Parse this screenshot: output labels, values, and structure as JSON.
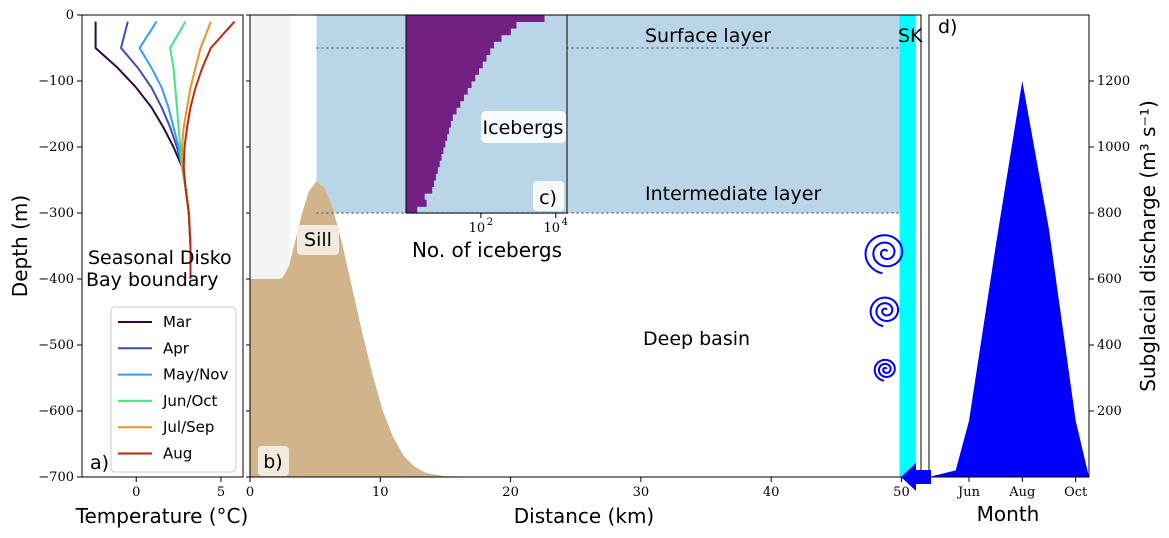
{
  "colors": {
    "shelf_grey": "#f4f4f4",
    "layer_blue": "#bbd5e8",
    "bathymetry": "#d2b48c",
    "icebergs": "#722182",
    "glacier": "#00ffff",
    "discharge": "#0000ff",
    "spiral": "#0000ff",
    "label_box": "#f2ebdd"
  },
  "chart_data": [
    {
      "id": "a",
      "type": "line",
      "panel_label": "a)",
      "xlabel": "Temperature (°C)",
      "ylabel": "Depth (m)",
      "xlim": [
        -3.2,
        6.3
      ],
      "ylim": [
        -700,
        0
      ],
      "xticks": [
        0,
        5
      ],
      "yticks": [
        0,
        -100,
        -200,
        -300,
        -400,
        -500,
        -600,
        -700
      ],
      "annotation": "Seasonal Disko Bay boundary",
      "annotation_lines": [
        "Seasonal Disko",
        "Bay boundary"
      ],
      "legend_position": "lower-right",
      "series": [
        {
          "name": "Mar",
          "color": "#2c0a3d",
          "depth": [
            -10,
            -50,
            -80,
            -110,
            -140,
            -170,
            -200,
            -230,
            -260,
            -300,
            -350,
            -400
          ],
          "temp": [
            -2.4,
            -2.4,
            -1.1,
            0.0,
            0.9,
            1.6,
            2.2,
            2.7,
            2.9,
            3.1,
            3.2,
            3.2
          ]
        },
        {
          "name": "Apr",
          "color": "#3c4fb5",
          "depth": [
            -10,
            -50,
            -80,
            -110,
            -140,
            -170,
            -200,
            -230,
            -260,
            -300,
            -350,
            -400
          ],
          "temp": [
            -0.5,
            -0.9,
            0.1,
            0.9,
            1.5,
            2.0,
            2.4,
            2.7,
            2.9,
            3.1,
            3.2,
            3.2
          ]
        },
        {
          "name": "May/Nov",
          "color": "#3a9af5",
          "depth": [
            -10,
            -50,
            -80,
            -110,
            -140,
            -170,
            -200,
            -230,
            -260,
            -300,
            -350,
            -400
          ],
          "temp": [
            1.2,
            0.2,
            0.9,
            1.5,
            1.9,
            2.2,
            2.5,
            2.7,
            2.9,
            3.1,
            3.2,
            3.2
          ]
        },
        {
          "name": "Jun/Oct",
          "color": "#40e880",
          "depth": [
            -10,
            -50,
            -80,
            -110,
            -140,
            -170,
            -200,
            -230,
            -260,
            -300,
            -350,
            -400
          ],
          "temp": [
            2.9,
            2.0,
            2.2,
            2.3,
            2.4,
            2.5,
            2.6,
            2.7,
            2.9,
            3.1,
            3.2,
            3.2
          ]
        },
        {
          "name": "Jul/Sep",
          "color": "#f0902a",
          "depth": [
            -10,
            -50,
            -80,
            -110,
            -140,
            -170,
            -200,
            -230,
            -260,
            -300,
            -350,
            -400
          ],
          "temp": [
            4.4,
            3.8,
            3.5,
            3.2,
            3.0,
            2.8,
            2.7,
            2.75,
            2.9,
            3.1,
            3.2,
            3.2
          ]
        },
        {
          "name": "Aug",
          "color": "#bb2a10",
          "depth": [
            -10,
            -50,
            -80,
            -110,
            -140,
            -170,
            -200,
            -230,
            -260,
            -300,
            -350,
            -400
          ],
          "temp": [
            5.8,
            4.4,
            3.9,
            3.5,
            3.2,
            3.0,
            2.85,
            2.8,
            2.9,
            3.1,
            3.2,
            3.2
          ]
        }
      ]
    },
    {
      "id": "b",
      "type": "area",
      "panel_label": "b)",
      "xlabel": "Distance (km)",
      "xlim": [
        0,
        51.5
      ],
      "ylim": [
        -700,
        0
      ],
      "xticks": [
        0,
        10,
        20,
        30,
        40,
        50
      ],
      "layers": {
        "surface": {
          "label": "Surface layer",
          "bottom": -50
        },
        "intermediate": {
          "label": "Intermediate layer",
          "bottom": -300
        },
        "deep": {
          "label": "Deep basin"
        }
      },
      "blue_zone_x": [
        5.1,
        50.0
      ],
      "grey_shelf": {
        "x": [
          0,
          3.1
        ],
        "top": 0,
        "bottom": -400
      },
      "sill": {
        "label": "Sill",
        "crest_x": 5.1,
        "crest_depth": -252
      },
      "bathymetry": {
        "x": [
          0,
          2.2,
          2.5,
          3.0,
          3.5,
          4.0,
          4.5,
          5.1,
          5.7,
          6.3,
          7.0,
          7.8,
          8.6,
          9.4,
          10.2,
          11.0,
          11.8,
          12.6,
          13.5,
          15.0,
          20.0,
          30.0,
          40.0,
          50.0
        ],
        "depth": [
          -400,
          -400,
          -398,
          -380,
          -340,
          -300,
          -268,
          -252,
          -262,
          -290,
          -340,
          -410,
          -480,
          -545,
          -600,
          -640,
          -668,
          -684,
          -694,
          -699,
          -700,
          -700,
          -700,
          -700
        ]
      },
      "glacier": {
        "label": "SK",
        "x": [
          49.85,
          51.1
        ]
      },
      "spirals": [
        {
          "x": 48.8,
          "depth": -360,
          "scale": 1.0
        },
        {
          "x": 48.8,
          "depth": -448,
          "scale": 0.75
        },
        {
          "x": 48.8,
          "depth": -537,
          "scale": 0.55
        }
      ]
    },
    {
      "id": "c",
      "type": "bar",
      "panel_label": "c)",
      "annotation": "Icebergs",
      "xlabel": "No. of icebergs",
      "xscale": "log",
      "xlim_log10": [
        0,
        4.3
      ],
      "xticks": [
        "10^2",
        "10^4"
      ],
      "ylim": [
        -300,
        0
      ],
      "bar_depth_step": 10,
      "counts_log10": [
        3.7,
        2.95,
        2.8,
        2.55,
        2.35,
        2.25,
        2.15,
        2.05,
        1.95,
        1.85,
        1.75,
        1.65,
        1.55,
        1.45,
        1.35,
        1.25,
        1.2,
        1.15,
        1.1,
        1.05,
        1.0,
        0.95,
        0.9,
        0.85,
        0.8,
        0.75,
        0.7,
        0.5,
        0.55,
        0.3
      ]
    },
    {
      "id": "d",
      "type": "area",
      "panel_label": "d)",
      "xlabel": "Month",
      "ylabel": "Subglacial discharge (m³ s⁻¹)",
      "ylim": [
        0,
        1400
      ],
      "yticks": [
        200,
        400,
        600,
        800,
        1000,
        1200
      ],
      "xlim": [
        4.5,
        10.5
      ],
      "xticks": [
        {
          "label": "Jun",
          "x": 6
        },
        {
          "label": "Aug",
          "x": 8
        },
        {
          "label": "Oct",
          "x": 10
        }
      ],
      "month": [
        4.5,
        5.5,
        6.0,
        7.0,
        8.0,
        9.0,
        10.0,
        10.5
      ],
      "discharge": [
        0,
        20,
        170,
        700,
        1200,
        750,
        170,
        0
      ]
    }
  ]
}
